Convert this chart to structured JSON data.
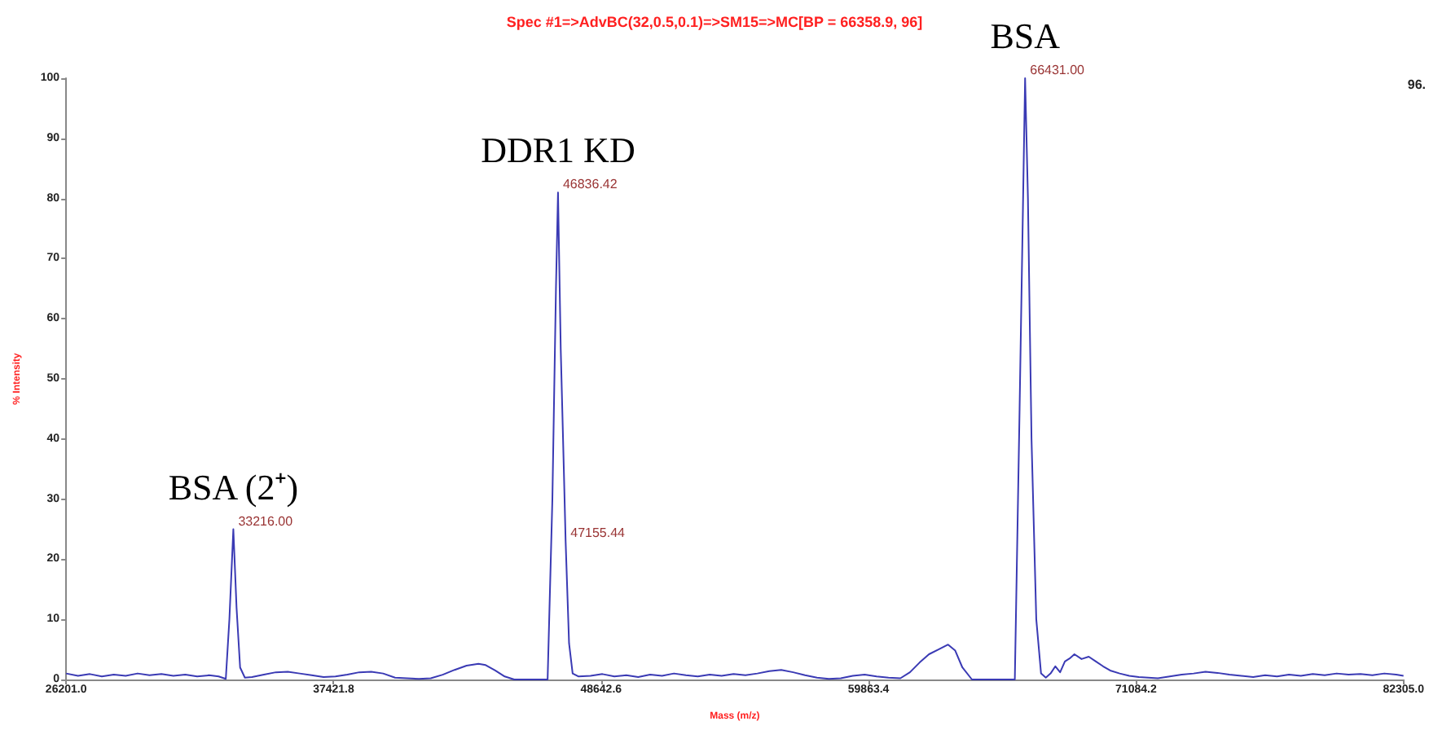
{
  "chart_data": {
    "type": "line",
    "title": "Spec #1=>AdvBC(32,0.5,0.1)=>SM15=>MC[BP = 66358.9, 96]",
    "xlabel": "Mass (m/z)",
    "ylabel": "% Intensity",
    "xlim": [
      26201,
      82305
    ],
    "xticks": [
      {
        "value": 26201,
        "label": "26201.0"
      },
      {
        "value": 37421.8,
        "label": "37421.8"
      },
      {
        "value": 48642.6,
        "label": "48642.6"
      },
      {
        "value": 59863.4,
        "label": "59863.4"
      },
      {
        "value": 71084.2,
        "label": "71084.2"
      },
      {
        "value": 82305,
        "label": "82305.0"
      }
    ],
    "ylim": [
      0,
      100
    ],
    "yticks": [
      0,
      10,
      20,
      30,
      40,
      50,
      60,
      70,
      80,
      90,
      100
    ],
    "grid": false,
    "line_style": "solid",
    "series": [
      {
        "color": "#3a3ab4",
        "x": [
          26201,
          26700,
          27200,
          27700,
          28200,
          28700,
          29200,
          29700,
          30200,
          30700,
          31200,
          31700,
          32200,
          32600,
          32900,
          33050,
          33216,
          33350,
          33500,
          33700,
          34000,
          34500,
          35000,
          35500,
          36000,
          36500,
          37000,
          37500,
          38000,
          38500,
          39000,
          39500,
          40000,
          40500,
          41000,
          41500,
          42000,
          42500,
          43000,
          43500,
          43800,
          44200,
          44600,
          45000,
          45500,
          46000,
          46400,
          46600,
          46750,
          46836.42,
          46950,
          47080,
          47155.44,
          47300,
          47450,
          47700,
          48200,
          48700,
          49200,
          49700,
          50200,
          50700,
          51200,
          51700,
          52200,
          52700,
          53200,
          53700,
          54200,
          54700,
          55200,
          55700,
          56200,
          56700,
          57200,
          57700,
          58200,
          58700,
          59200,
          59700,
          60200,
          60700,
          61200,
          61600,
          62000,
          62400,
          62800,
          63200,
          63500,
          63800,
          64200,
          64600,
          65000,
          65400,
          65700,
          66000,
          66200,
          66431,
          66550,
          66700,
          66900,
          67100,
          67300,
          67500,
          67700,
          67900,
          68100,
          68300,
          68500,
          68800,
          69100,
          69400,
          69700,
          70000,
          70400,
          70800,
          71200,
          71600,
          72000,
          72500,
          73000,
          73500,
          74000,
          74500,
          75000,
          75500,
          76000,
          76500,
          77000,
          77500,
          78000,
          78500,
          79000,
          79500,
          80000,
          80500,
          81000,
          81500,
          82000,
          82305
        ],
        "values": [
          1,
          0.6,
          0.9,
          0.5,
          0.8,
          0.6,
          1,
          0.7,
          0.9,
          0.6,
          0.8,
          0.5,
          0.7,
          0.5,
          0.1,
          10,
          25,
          12,
          2,
          0.3,
          0.4,
          0.8,
          1.2,
          1.3,
          1,
          0.7,
          0.4,
          0.5,
          0.8,
          1.2,
          1.3,
          1,
          0.3,
          0.2,
          0.1,
          0.2,
          0.8,
          1.6,
          2.3,
          2.6,
          2.4,
          1.5,
          0.5,
          0,
          0,
          0,
          0,
          30,
          65,
          81,
          55,
          35,
          23,
          6,
          1,
          0.5,
          0.6,
          0.9,
          0.5,
          0.7,
          0.4,
          0.8,
          0.6,
          1,
          0.7,
          0.5,
          0.8,
          0.6,
          0.9,
          0.7,
          1,
          1.4,
          1.6,
          1.2,
          0.7,
          0.3,
          0.1,
          0.2,
          0.6,
          0.8,
          0.5,
          0.3,
          0.2,
          1.2,
          2.8,
          4.2,
          5,
          5.8,
          4.8,
          2,
          0,
          0,
          0,
          0,
          0,
          0,
          45,
          100,
          80,
          40,
          10,
          1,
          0.3,
          1,
          2.2,
          1.2,
          3,
          3.5,
          4.2,
          3.4,
          3.8,
          3,
          2.2,
          1.5,
          1,
          0.6,
          0.4,
          0.3,
          0.2,
          0.5,
          0.8,
          1,
          1.3,
          1.1,
          0.8,
          0.6,
          0.4,
          0.7,
          0.5,
          0.8,
          0.6,
          0.9,
          0.7,
          1,
          0.8,
          0.9,
          0.7,
          1,
          0.8,
          0.6
        ]
      }
    ],
    "annotations": [
      {
        "text": "BSA (2⁺)",
        "x": 33216,
        "y": 25
      },
      {
        "text": "DDR1 KD",
        "x": 46836.42,
        "y": 81
      },
      {
        "text": "BSA",
        "x": 66431,
        "y": 100
      },
      {
        "text": "33216.00",
        "x": 33216,
        "y": 25
      },
      {
        "text": "46836.42",
        "x": 46836.42,
        "y": 81
      },
      {
        "text": "47155.44",
        "x": 47155.44,
        "y": 23
      },
      {
        "text": "66431.00",
        "x": 66431,
        "y": 100
      },
      "96."
    ]
  }
}
